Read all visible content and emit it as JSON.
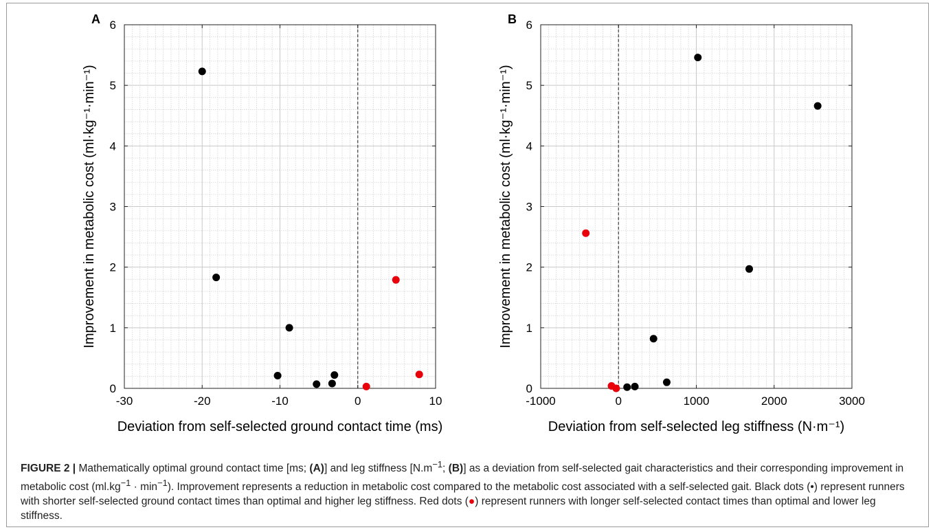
{
  "chart_data": [
    {
      "type": "scatter",
      "panel_label": "A",
      "xlabel": "Deviation from self-selected ground contact time (ms)",
      "ylabel": "Improvement in metabolic cost (ml·kg⁻¹·min⁻¹)",
      "xlim": [
        -30,
        10
      ],
      "ylim": [
        0,
        6
      ],
      "xticks": [
        -30,
        -20,
        -10,
        0,
        10
      ],
      "yticks": [
        0,
        1,
        2,
        3,
        4,
        5,
        6
      ],
      "grid": true,
      "minor_grid": true,
      "reference_line_x": 0,
      "series": [
        {
          "color": "#000000",
          "points": [
            {
              "x": -20.0,
              "y": 5.23
            },
            {
              "x": -18.2,
              "y": 1.83
            },
            {
              "x": -8.8,
              "y": 1.0
            },
            {
              "x": -10.3,
              "y": 0.21
            },
            {
              "x": -5.3,
              "y": 0.07
            },
            {
              "x": -3.3,
              "y": 0.08
            },
            {
              "x": -3.0,
              "y": 0.22
            }
          ]
        },
        {
          "color": "#e8000b",
          "points": [
            {
              "x": 4.9,
              "y": 1.79
            },
            {
              "x": 7.9,
              "y": 0.23
            },
            {
              "x": 1.1,
              "y": 0.03
            }
          ]
        }
      ]
    },
    {
      "type": "scatter",
      "panel_label": "B",
      "xlabel": "Deviation from self-selected leg stiffness (N·m⁻¹)",
      "ylabel": "Improvement in metabolic cost (ml·kg⁻¹·min⁻¹)",
      "xlim": [
        -1000,
        3000
      ],
      "ylim": [
        0,
        6
      ],
      "xticks": [
        -1000,
        0,
        1000,
        2000,
        3000
      ],
      "yticks": [
        0,
        1,
        2,
        3,
        4,
        5,
        6
      ],
      "grid": true,
      "minor_grid": true,
      "reference_line_x": 0,
      "series": [
        {
          "color": "#000000",
          "points": [
            {
              "x": 1020,
              "y": 5.46
            },
            {
              "x": 2560,
              "y": 4.66
            },
            {
              "x": 1680,
              "y": 1.97
            },
            {
              "x": 450,
              "y": 0.82
            },
            {
              "x": 620,
              "y": 0.1
            },
            {
              "x": 110,
              "y": 0.02
            },
            {
              "x": 210,
              "y": 0.03
            }
          ]
        },
        {
          "color": "#e8000b",
          "points": [
            {
              "x": -420,
              "y": 2.56
            },
            {
              "x": -90,
              "y": 0.04
            },
            {
              "x": -30,
              "y": 0.0
            }
          ]
        }
      ]
    }
  ],
  "caption": {
    "label": "FIGURE 2 |",
    "p1": " Mathematically optimal ground contact time [ms; ",
    "p1b": "(A)",
    "p2": "] and leg stiffness [N.m",
    "p2sup": "−1",
    "p3": "; ",
    "p3b": "(B)",
    "p4": "] as a deviation from self-selected gait characteristics and their corresponding improvement in metabolic cost (ml.kg",
    "p4sup": "−1",
    "p5": " · min",
    "p5sup": "−1",
    "p6": "). Improvement represents a reduction in metabolic cost compared to the metabolic cost associated with a self-selected gait. Black dots (•) represent runners with shorter self-selected ground contact times than optimal and higher leg stiffness. Red dots (",
    "red_dot": "●",
    "p7": ") represent runners with longer self-selected contact times than optimal and lower leg stiffness."
  }
}
